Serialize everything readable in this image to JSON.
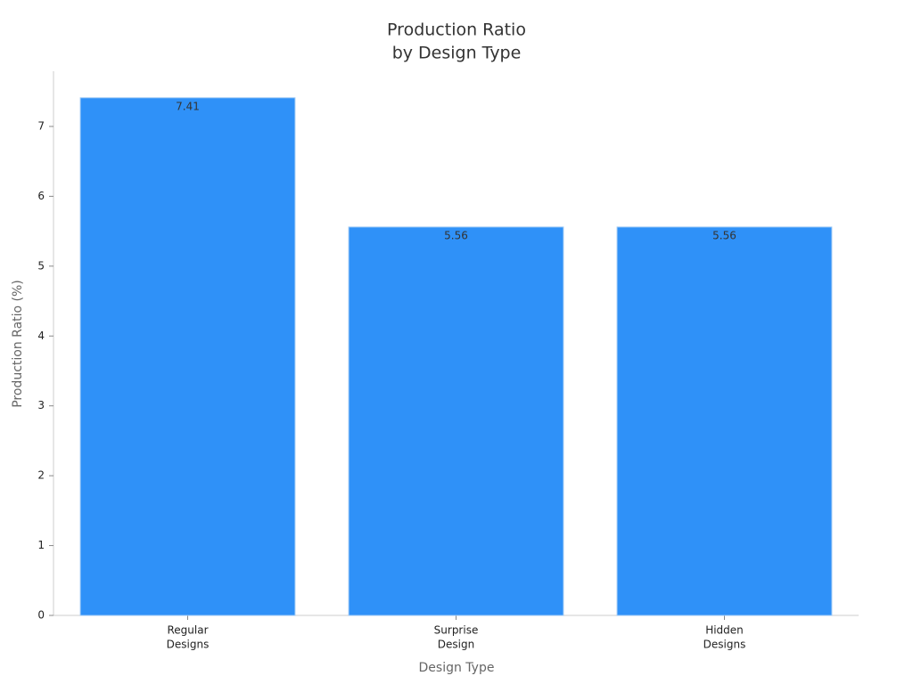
{
  "chart_data": {
    "type": "bar",
    "title": [
      "Production Ratio",
      "by Design Type"
    ],
    "xlabel": "Design Type",
    "ylabel": "Production Ratio (%)",
    "categories": [
      [
        "Regular",
        "Designs"
      ],
      [
        "Surprise",
        "Design"
      ],
      [
        "Hidden",
        "Designs"
      ]
    ],
    "values": [
      7.41,
      5.56,
      5.56
    ],
    "color": "#2f91f8",
    "ylim": [
      0,
      7.79
    ],
    "yticks": [
      0,
      1,
      2,
      3,
      4,
      5,
      6,
      7
    ],
    "grid": false
  }
}
